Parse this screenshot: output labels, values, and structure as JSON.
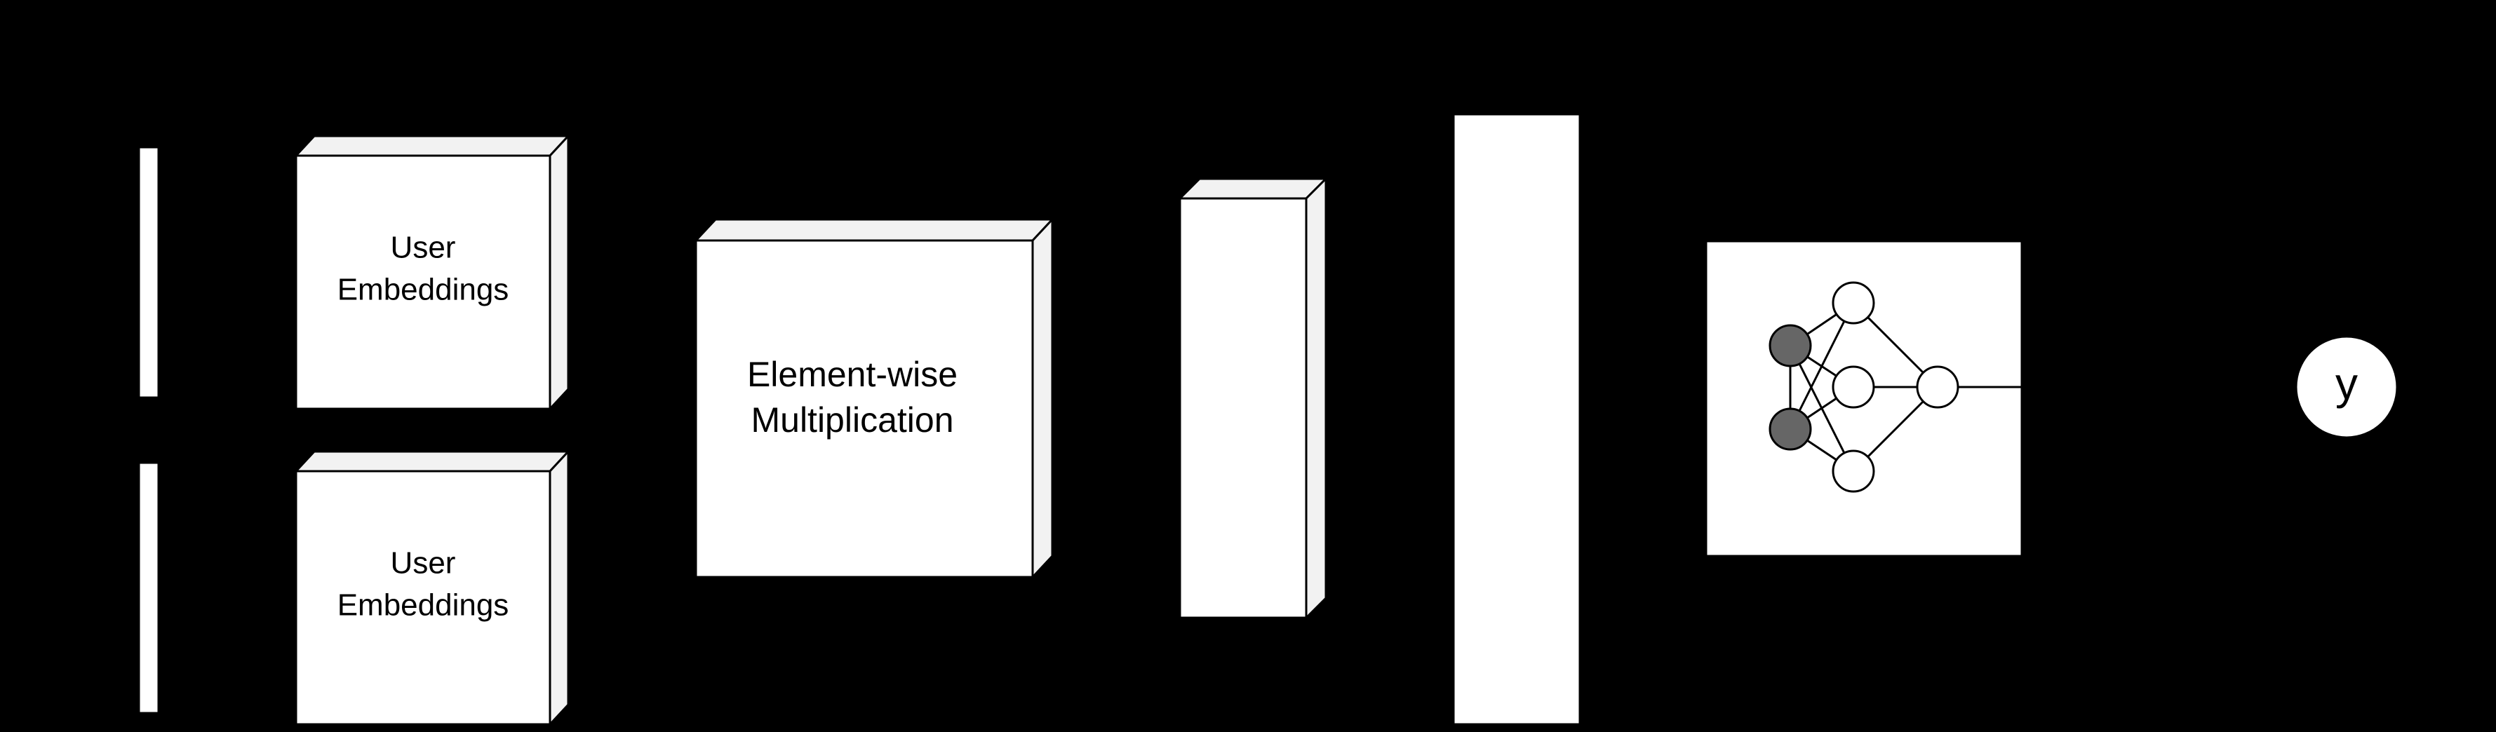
{
  "diagram": {
    "background": "#000000",
    "block_fill": "#ffffff",
    "block_side_fill": "#f2f2f2",
    "stroke": "#000000",
    "filled_node_color": "#666666",
    "user_embeddings_top": {
      "line1": "User",
      "line2": "Embeddings"
    },
    "user_embeddings_bottom": {
      "line1": "User",
      "line2": "Embeddings"
    },
    "elementwise": {
      "line1": "Element-wise",
      "line2": "Multiplication"
    },
    "output": {
      "label": "y"
    }
  }
}
